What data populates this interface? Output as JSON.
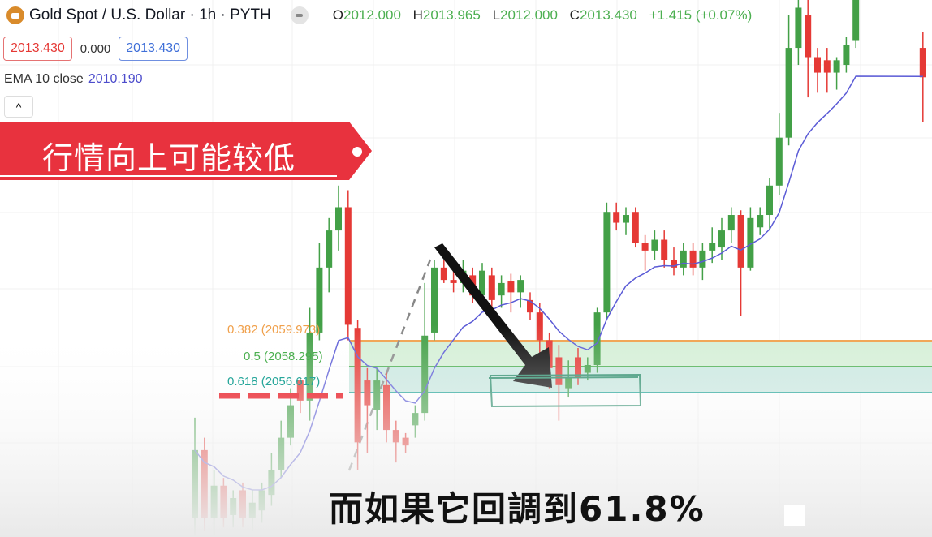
{
  "header": {
    "symbol_title": "Gold Spot / U.S. Dollar · 1h · PYTH",
    "ohlc": {
      "o_label": "O",
      "o": "2012.000",
      "h_label": "H",
      "h": "2013.965",
      "l_label": "L",
      "l": "2012.000",
      "c_label": "C",
      "c": "2013.430",
      "change": "+1.415 (+0.07%)"
    }
  },
  "quote": {
    "sell": "2013.430",
    "spread": "0.000",
    "buy": "2013.430"
  },
  "indicator": {
    "name": "EMA 10 close",
    "value": "2010.190"
  },
  "collapse_icon": "^",
  "banner": {
    "text": "行情向上可能较低"
  },
  "fib": [
    {
      "label": "0.382 (2059.973)",
      "level": 2059.973,
      "color": "#f0a04b"
    },
    {
      "label": "0.5 (2058.295)",
      "level": 2058.295,
      "color": "#4caf50"
    },
    {
      "label": "0.618 (2056.617)",
      "level": 2056.617,
      "color": "#26a69a"
    }
  ],
  "caption": "而如果它回調到61.8%",
  "colors": {
    "up": "#43a047",
    "down": "#e53935",
    "ema": "#5b5bd6",
    "banner": "#e8323e"
  },
  "chart_data": {
    "type": "candlestick",
    "ohlc": [
      [
        2048.5,
        2055.0,
        2047.3,
        2052.9
      ],
      [
        2052.9,
        2053.7,
        2047.7,
        2048.5
      ],
      [
        2048.5,
        2051.6,
        2047.4,
        2050.6
      ],
      [
        2050.6,
        2051.1,
        2047.9,
        2048.5
      ],
      [
        2048.7,
        2050.3,
        2047.9,
        2049.8
      ],
      [
        2050.3,
        2050.8,
        2047.9,
        2048.5
      ],
      [
        2048.5,
        2050.3,
        2047.7,
        2049.5
      ],
      [
        2049.0,
        2050.8,
        2048.2,
        2050.3
      ],
      [
        2050.0,
        2052.7,
        2049.3,
        2051.6
      ],
      [
        2051.6,
        2054.8,
        2051.1,
        2053.7
      ],
      [
        2053.7,
        2056.9,
        2053.2,
        2055.8
      ],
      [
        2057.4,
        2057.6,
        2055.3,
        2056.1
      ],
      [
        2056.1,
        2062.1,
        2054.8,
        2060.5
      ],
      [
        2060.5,
        2066.3,
        2060.0,
        2064.7
      ],
      [
        2064.7,
        2067.9,
        2063.1,
        2067.1
      ],
      [
        2067.1,
        2070.0,
        2065.8,
        2068.6
      ],
      [
        2068.6,
        2069.7,
        2060.0,
        2061.0
      ],
      [
        2060.8,
        2061.3,
        2051.6,
        2053.4
      ],
      [
        2057.4,
        2058.2,
        2052.7,
        2055.8
      ],
      [
        2055.5,
        2058.2,
        2054.2,
        2057.4
      ],
      [
        2057.1,
        2057.9,
        2053.4,
        2054.2
      ],
      [
        2054.2,
        2054.8,
        2052.1,
        2053.4
      ],
      [
        2053.7,
        2054.0,
        2052.7,
        2053.2
      ],
      [
        2054.5,
        2055.8,
        2053.7,
        2055.3
      ],
      [
        2055.3,
        2063.7,
        2054.8,
        2060.3
      ],
      [
        2060.5,
        2065.2,
        2060.0,
        2064.7
      ],
      [
        2064.7,
        2065.2,
        2063.7,
        2063.9
      ],
      [
        2063.9,
        2064.7,
        2063.1,
        2063.7
      ],
      [
        2063.7,
        2065.2,
        2063.1,
        2064.5
      ],
      [
        2064.2,
        2064.7,
        2062.4,
        2062.9
      ],
      [
        2062.9,
        2065.0,
        2062.6,
        2064.5
      ],
      [
        2064.2,
        2064.7,
        2062.1,
        2062.6
      ],
      [
        2062.9,
        2064.2,
        2062.1,
        2063.7
      ],
      [
        2063.8,
        2064.3,
        2061.8,
        2063.1
      ],
      [
        2063.1,
        2064.2,
        2062.1,
        2063.9
      ],
      [
        2062.6,
        2063.1,
        2061.3,
        2061.8
      ],
      [
        2061.8,
        2062.4,
        2058.9,
        2060.0
      ],
      [
        2060.0,
        2060.5,
        2056.9,
        2058.2
      ],
      [
        2058.9,
        2059.7,
        2054.8,
        2057.1
      ],
      [
        2056.9,
        2058.7,
        2056.3,
        2057.6
      ],
      [
        2058.9,
        2059.5,
        2057.1,
        2057.6
      ],
      [
        2057.9,
        2058.9,
        2057.4,
        2058.4
      ],
      [
        2058.4,
        2062.1,
        2057.9,
        2061.8
      ],
      [
        2061.8,
        2068.9,
        2061.3,
        2068.3
      ],
      [
        2068.3,
        2068.9,
        2067.1,
        2067.6
      ],
      [
        2067.6,
        2068.6,
        2066.8,
        2068.1
      ],
      [
        2068.3,
        2068.6,
        2066.0,
        2066.3
      ],
      [
        2066.3,
        2066.8,
        2064.5,
        2065.8
      ],
      [
        2065.8,
        2067.1,
        2065.2,
        2066.5
      ],
      [
        2066.5,
        2067.1,
        2064.7,
        2065.2
      ],
      [
        2065.2,
        2066.0,
        2064.2,
        2064.7
      ],
      [
        2064.7,
        2066.3,
        2064.2,
        2065.8
      ],
      [
        2065.8,
        2066.3,
        2064.2,
        2064.7
      ],
      [
        2064.7,
        2066.3,
        2063.9,
        2065.8
      ],
      [
        2065.8,
        2067.3,
        2065.0,
        2066.3
      ],
      [
        2066.0,
        2067.9,
        2065.2,
        2067.1
      ],
      [
        2067.1,
        2068.6,
        2066.3,
        2068.1
      ],
      [
        2068.1,
        2068.4,
        2061.6,
        2064.7
      ],
      [
        2064.7,
        2068.6,
        2064.5,
        2067.9
      ],
      [
        2067.3,
        2068.6,
        2066.8,
        2068.1
      ],
      [
        2068.1,
        2070.5,
        2067.1,
        2070.0
      ],
      [
        2070.0,
        2074.7,
        2069.4,
        2073.1
      ],
      [
        2073.1,
        2081.0,
        2072.6,
        2078.9
      ],
      [
        2078.9,
        2082.0,
        2077.8,
        2081.5
      ],
      [
        2081.0,
        2082.0,
        2075.7,
        2078.3
      ],
      [
        2078.3,
        2078.9,
        2076.0,
        2077.3
      ],
      [
        2078.1,
        2078.9,
        2076.0,
        2077.3
      ],
      [
        2077.3,
        2078.3,
        2076.2,
        2078.1
      ],
      [
        2077.8,
        2079.6,
        2077.3,
        2079.1
      ],
      [
        2079.4,
        2082.0,
        2078.9,
        2082.0
      ],
      null,
      null,
      null,
      null,
      null,
      null,
      [
        2078.9,
        2079.9,
        2074.1,
        2077.0
      ]
    ],
    "ema_period": 10
  }
}
